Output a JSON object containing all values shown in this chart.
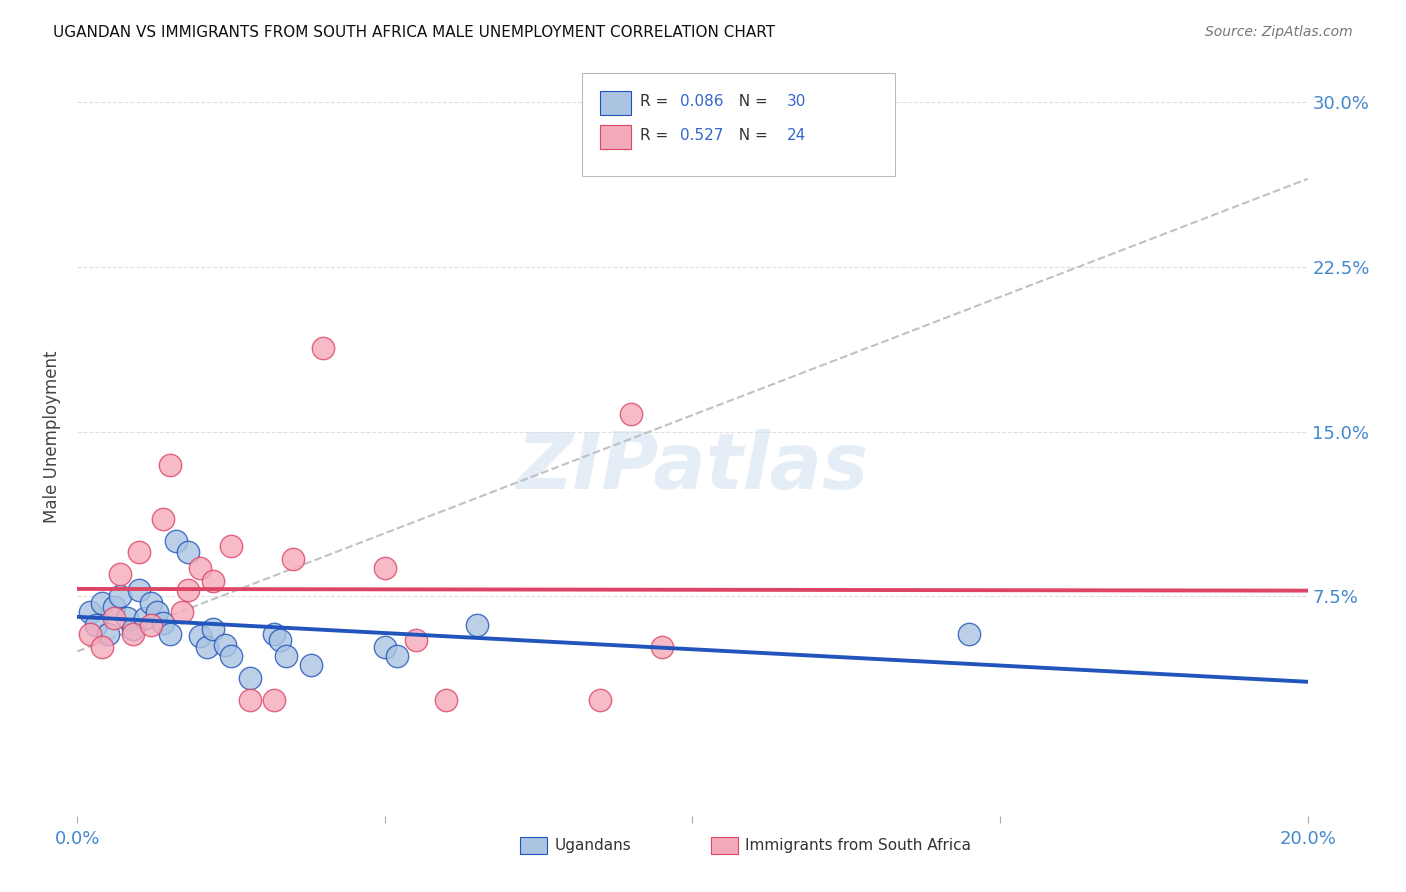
{
  "title": "UGANDAN VS IMMIGRANTS FROM SOUTH AFRICA MALE UNEMPLOYMENT CORRELATION CHART",
  "source": "Source: ZipAtlas.com",
  "ylabel": "Male Unemployment",
  "legend_label1": "Ugandans",
  "legend_label2": "Immigrants from South Africa",
  "r1": "0.086",
  "n1": "30",
  "r2": "0.527",
  "n2": "24",
  "xlim": [
    0.0,
    0.2
  ],
  "ylim": [
    -0.025,
    0.32
  ],
  "color_blue": "#aac4e2",
  "color_pink": "#f5aabb",
  "line_blue": "#2255bb",
  "line_pink": "#dd4466",
  "line_dash": "#bbbbbb",
  "ugandan_x": [
    0.002,
    0.003,
    0.004,
    0.005,
    0.006,
    0.007,
    0.008,
    0.009,
    0.01,
    0.011,
    0.012,
    0.013,
    0.014,
    0.015,
    0.016,
    0.018,
    0.02,
    0.021,
    0.022,
    0.024,
    0.025,
    0.028,
    0.032,
    0.033,
    0.034,
    0.038,
    0.05,
    0.052,
    0.065,
    0.145
  ],
  "ugandan_y": [
    0.068,
    0.062,
    0.072,
    0.058,
    0.07,
    0.075,
    0.065,
    0.06,
    0.078,
    0.065,
    0.072,
    0.068,
    0.063,
    0.058,
    0.1,
    0.095,
    0.057,
    0.052,
    0.06,
    0.053,
    0.048,
    0.038,
    0.058,
    0.055,
    0.048,
    0.044,
    0.052,
    0.048,
    0.062,
    0.058
  ],
  "immigrant_x": [
    0.002,
    0.004,
    0.006,
    0.007,
    0.009,
    0.01,
    0.012,
    0.014,
    0.015,
    0.017,
    0.018,
    0.02,
    0.022,
    0.025,
    0.028,
    0.032,
    0.035,
    0.04,
    0.05,
    0.055,
    0.06,
    0.085,
    0.09,
    0.095
  ],
  "immigrant_y": [
    0.058,
    0.052,
    0.065,
    0.085,
    0.058,
    0.095,
    0.062,
    0.11,
    0.135,
    0.068,
    0.078,
    0.088,
    0.082,
    0.098,
    0.028,
    0.028,
    0.092,
    0.188,
    0.088,
    0.055,
    0.028,
    0.028,
    0.158,
    0.052
  ],
  "watermark": "ZIPatlas",
  "background_color": "#ffffff",
  "grid_color": "#e0e0e0"
}
